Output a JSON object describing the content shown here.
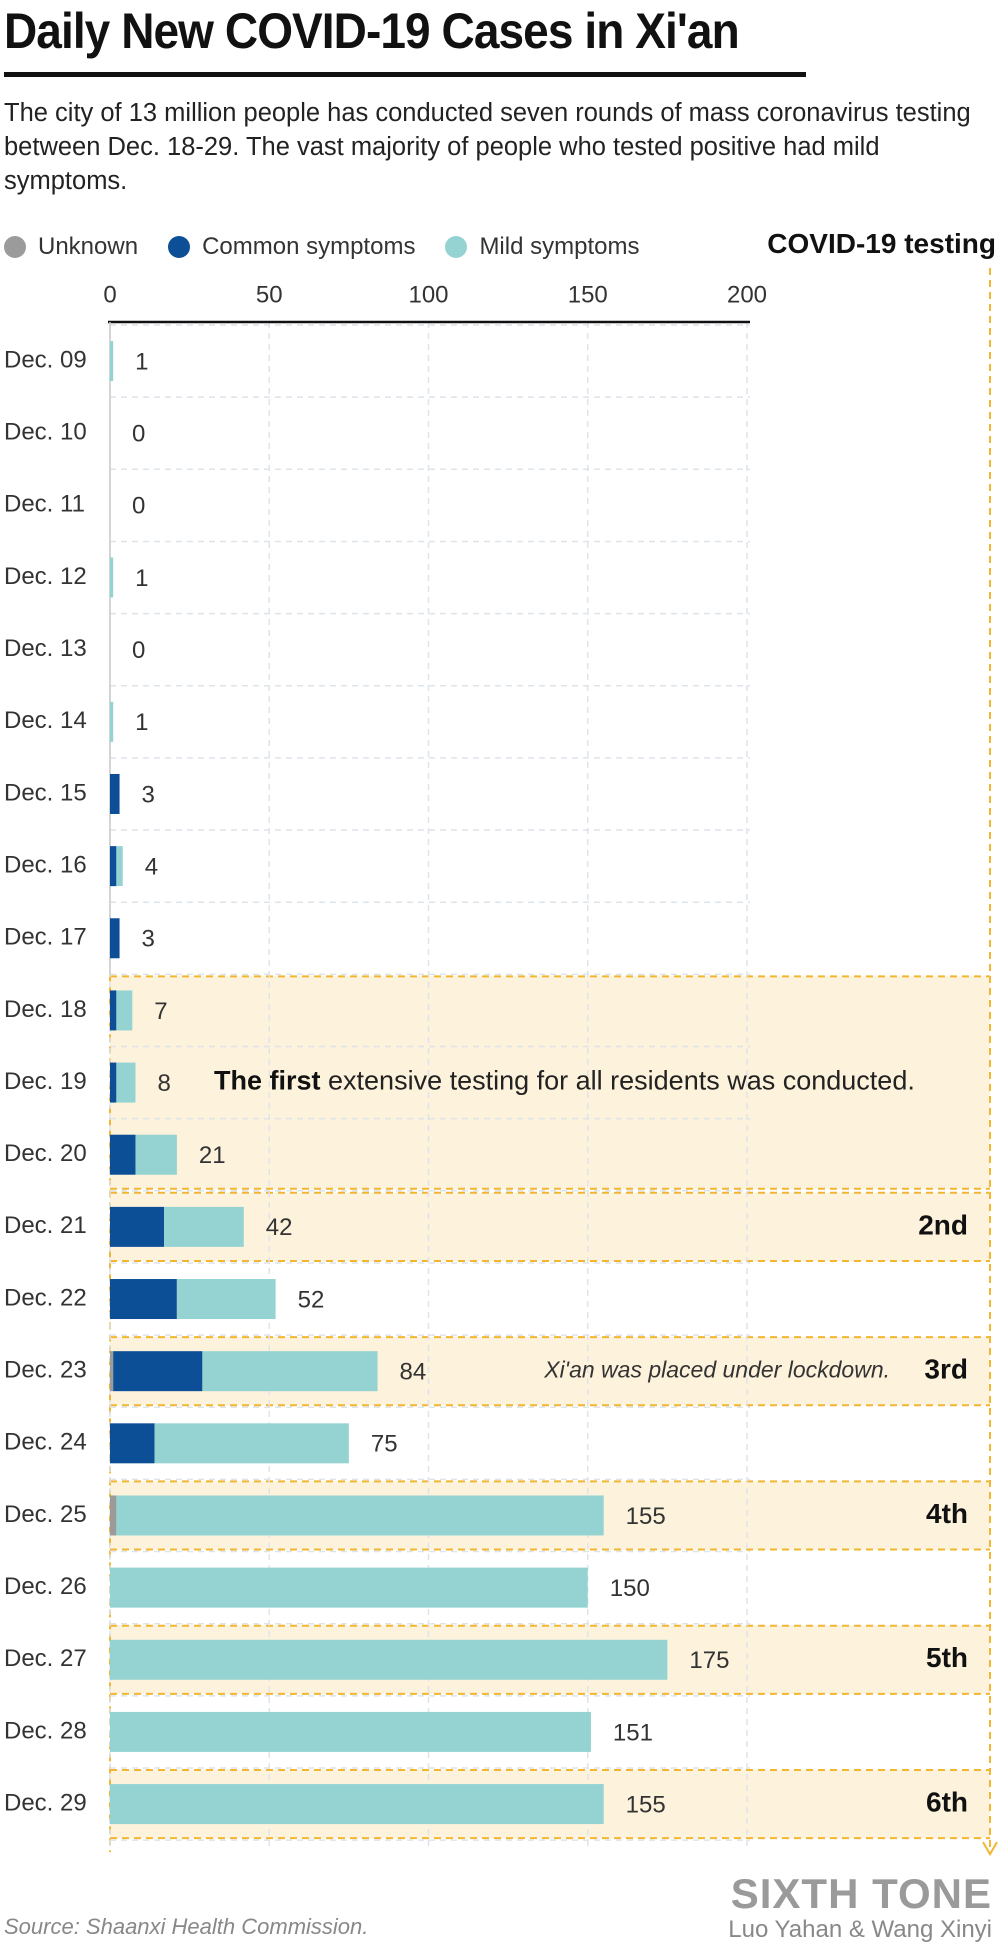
{
  "header": {
    "title": "Daily New COVID-19 Cases in Xi'an",
    "subtitle": "The city of 13 million people has conducted seven rounds of mass coronavirus testing between Dec. 18-29. The vast majority of people who tested positive had mild symptoms."
  },
  "legend": {
    "items": [
      {
        "label": "Unknown",
        "color": "#9b9b9b"
      },
      {
        "label": "Common symptoms",
        "color": "#0d4f96"
      },
      {
        "label": "Mild symptoms",
        "color": "#95d2d2"
      }
    ],
    "testing_label": "COVID-19 testing"
  },
  "colors": {
    "unknown": "#9b9b9b",
    "common": "#0d4f96",
    "mild": "#95d2d2",
    "testing_band": "#fdf2dc",
    "testing_line": "#f2b632",
    "grid": "#dde4ea"
  },
  "chart_data": {
    "type": "bar",
    "orientation": "horizontal",
    "stacked": true,
    "categories": [
      "Dec. 09",
      "Dec. 10",
      "Dec. 11",
      "Dec. 12",
      "Dec. 13",
      "Dec. 14",
      "Dec. 15",
      "Dec. 16",
      "Dec. 17",
      "Dec. 18",
      "Dec. 19",
      "Dec. 20",
      "Dec. 21",
      "Dec. 22",
      "Dec. 23",
      "Dec. 24",
      "Dec. 25",
      "Dec. 26",
      "Dec. 27",
      "Dec. 28",
      "Dec. 29"
    ],
    "series": [
      {
        "name": "Unknown",
        "values": [
          0,
          0,
          0,
          0,
          0,
          0,
          0,
          0,
          0,
          0,
          0,
          0,
          0,
          0,
          1,
          0,
          2,
          0,
          0,
          0,
          0
        ]
      },
      {
        "name": "Common symptoms",
        "values": [
          0,
          0,
          0,
          0,
          0,
          0,
          3,
          2,
          3,
          2,
          2,
          8,
          17,
          21,
          28,
          14,
          0,
          0,
          0,
          0,
          0
        ]
      },
      {
        "name": "Mild symptoms",
        "values": [
          1,
          0,
          0,
          1,
          0,
          1,
          0,
          2,
          0,
          5,
          6,
          13,
          25,
          31,
          55,
          61,
          153,
          150,
          175,
          151,
          155
        ]
      }
    ],
    "totals": [
      1,
      0,
      0,
      1,
      0,
      1,
      3,
      4,
      3,
      7,
      8,
      21,
      42,
      52,
      84,
      75,
      155,
      150,
      175,
      151,
      155
    ],
    "xlim": [
      0,
      200
    ],
    "xticks": [
      0,
      50,
      100,
      150,
      200
    ],
    "grid": true,
    "legend_position": "top",
    "testing_rounds": [
      {
        "label": "",
        "start": "Dec. 18",
        "end": "Dec. 20",
        "note_bold": "The first",
        "note": " extensive testing for all residents was conducted."
      },
      {
        "label": "2nd",
        "start": "Dec. 21",
        "end": "Dec. 21"
      },
      {
        "label": "3rd",
        "start": "Dec. 23",
        "end": "Dec. 23",
        "note_italic": "Xi'an was placed under lockdown."
      },
      {
        "label": "4th",
        "start": "Dec. 25",
        "end": "Dec. 25"
      },
      {
        "label": "5th",
        "start": "Dec. 27",
        "end": "Dec. 27"
      },
      {
        "label": "6th",
        "start": "Dec. 29",
        "end": "Dec. 29"
      }
    ]
  },
  "footer": {
    "source": "Source: Shaanxi Health Commission.",
    "brand": "SIXTH TONE",
    "credits": "Luo Yahan & Wang Xinyi"
  }
}
